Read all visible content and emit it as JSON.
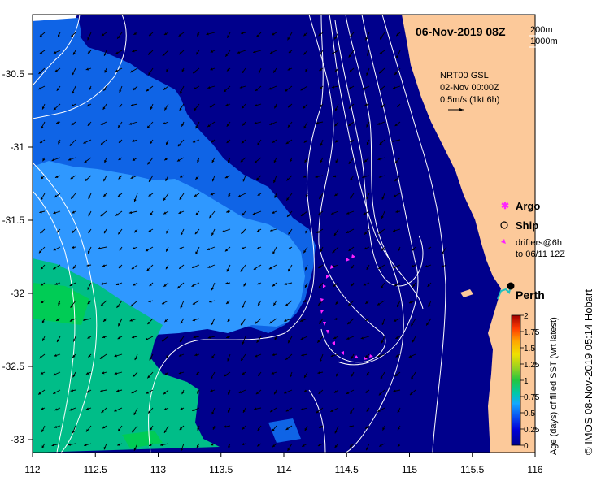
{
  "title": "06-Nov-2019 08Z",
  "contour_legend": {
    "a": "200m",
    "b": "1000m"
  },
  "product": {
    "name": "NRT00 GSL",
    "date": "02-Nov 00:00Z",
    "scale": "0.5m/s (1kt 6h)"
  },
  "legend": {
    "argo": "Argo",
    "ship": "Ship",
    "drifters_1": "drifters@6h",
    "drifters_2": "to 06/11 12Z"
  },
  "city": "Perth",
  "colorbar": {
    "label": "Age (days) of filled SST (wrt latest)",
    "ticks": [
      "0",
      "0.25",
      "0.5",
      "0.75",
      "1",
      "1.25",
      "1.5",
      "1.75",
      "2"
    ]
  },
  "credit": "© IMOS 08-Nov-2019 05:14 Hobart",
  "axes": {
    "x_ticks": [
      "112",
      "112.5",
      "113",
      "113.5",
      "114",
      "114.5",
      "115",
      "115.5",
      "116"
    ],
    "y_ticks": [
      "-30.5",
      "-31",
      "-31.5",
      "-32",
      "-32.5",
      "-33"
    ]
  },
  "colors": {
    "land": "#fcc99a",
    "age_0": "#00008c",
    "age_025": "#0f64e6",
    "age_035": "#2f98ff",
    "age_075": "#00bd88",
    "age_09": "#00cc55",
    "drifter": "#ff22ff",
    "contour": "#ffffff"
  }
}
